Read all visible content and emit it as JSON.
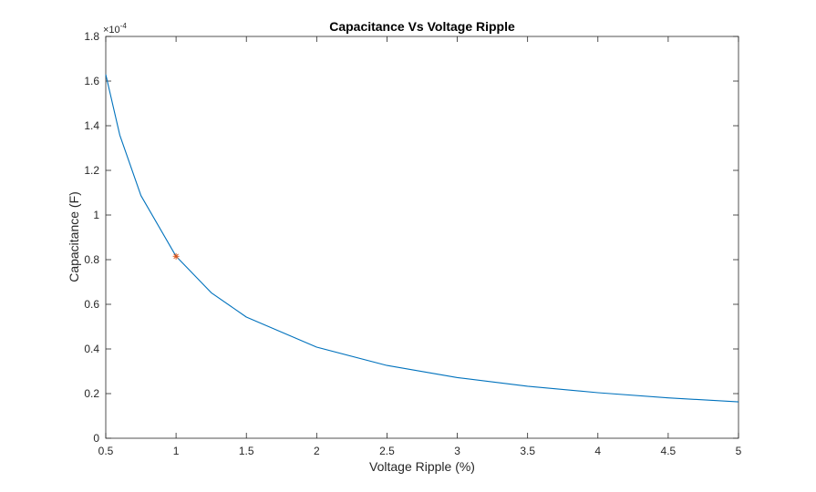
{
  "chart_data": {
    "type": "line",
    "title": "Capacitance Vs Voltage Ripple",
    "xlabel": "Voltage Ripple (%)",
    "ylabel": "Capacitance (F)",
    "y_exponent_label": "×10",
    "y_exponent": "-4",
    "xlim": [
      0.5,
      5
    ],
    "ylim": [
      0,
      1.8
    ],
    "x_ticks": [
      0.5,
      1,
      1.5,
      2,
      2.5,
      3,
      3.5,
      4,
      4.5,
      5
    ],
    "x_tick_labels": [
      "0.5",
      "1",
      "1.5",
      "2",
      "2.5",
      "3",
      "3.5",
      "4",
      "4.5",
      "5"
    ],
    "y_ticks": [
      0,
      0.2,
      0.4,
      0.6,
      0.8,
      1,
      1.2,
      1.4,
      1.6,
      1.8
    ],
    "y_tick_labels": [
      "0",
      "0.2",
      "0.4",
      "0.6",
      "0.8",
      "1",
      "1.2",
      "1.4",
      "1.6",
      "1.8"
    ],
    "grid": false,
    "series": [
      {
        "style": "line",
        "color": "#0072BD",
        "x": [
          0.5,
          0.6,
          0.75,
          1,
          1.25,
          1.5,
          2,
          2.5,
          3,
          3.5,
          4,
          4.5,
          5
        ],
        "y": [
          1.63,
          1.358,
          1.087,
          0.815,
          0.652,
          0.543,
          0.408,
          0.326,
          0.272,
          0.233,
          0.204,
          0.181,
          0.163
        ]
      },
      {
        "style": "marker",
        "marker": "*",
        "color": "#D95319",
        "x": [
          1
        ],
        "y": [
          0.815
        ]
      }
    ]
  }
}
